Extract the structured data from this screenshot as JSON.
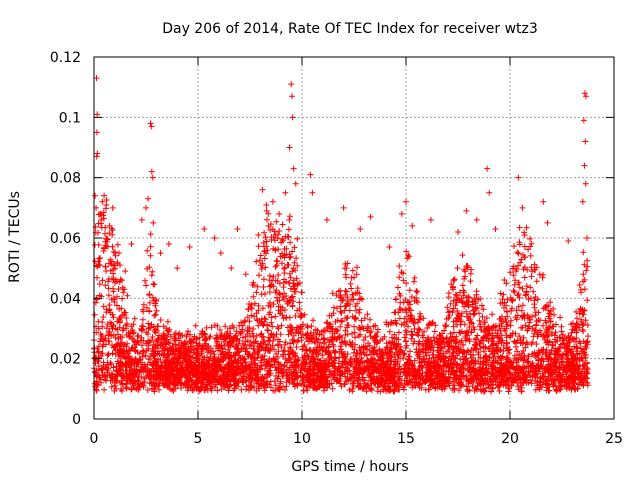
{
  "chart_data": {
    "type": "scatter",
    "title": "Day 206 of 2014, Rate Of TEC Index for receiver wtz3",
    "xlabel": "GPS time / hours",
    "ylabel": "ROTI / TECUs",
    "xlim": [
      0,
      25
    ],
    "ylim": [
      0,
      0.12
    ],
    "x_ticks": [
      0,
      5,
      10,
      15,
      20,
      25
    ],
    "x_tick_labels": [
      "0",
      "5",
      "10",
      "15",
      "20",
      "25"
    ],
    "y_ticks": [
      0,
      0.02,
      0.04,
      0.06,
      0.08,
      0.1,
      0.12
    ],
    "y_tick_labels": [
      "0",
      "0.02",
      "0.04",
      "0.06",
      "0.08",
      "0.1",
      "0.12"
    ],
    "grid": true,
    "marker": "plus",
    "series": [
      {
        "name": "ROTI",
        "color": "#ff0000",
        "note": "dense scatter from 0 to 23.7 h, mostly 0.005-0.04 TECU/s; representative outliers listed",
        "points": [
          [
            0.12,
            0.113
          ],
          [
            0.15,
            0.101
          ],
          [
            0.14,
            0.095
          ],
          [
            0.16,
            0.088
          ],
          [
            0.13,
            0.087
          ],
          [
            0.05,
            0.074
          ],
          [
            0.1,
            0.07
          ],
          [
            0.35,
            0.066
          ],
          [
            0.4,
            0.072
          ],
          [
            0.75,
            0.064
          ],
          [
            0.9,
            0.07
          ],
          [
            1.2,
            0.055
          ],
          [
            1.5,
            0.049
          ],
          [
            1.8,
            0.058
          ],
          [
            2.3,
            0.066
          ],
          [
            2.5,
            0.07
          ],
          [
            2.6,
            0.073
          ],
          [
            2.72,
            0.098
          ],
          [
            2.77,
            0.097
          ],
          [
            2.78,
            0.082
          ],
          [
            2.83,
            0.08
          ],
          [
            2.85,
            0.065
          ],
          [
            3.2,
            0.055
          ],
          [
            3.6,
            0.058
          ],
          [
            4.0,
            0.05
          ],
          [
            4.6,
            0.057
          ],
          [
            5.3,
            0.063
          ],
          [
            5.8,
            0.06
          ],
          [
            6.1,
            0.055
          ],
          [
            6.6,
            0.05
          ],
          [
            6.9,
            0.063
          ],
          [
            7.3,
            0.048
          ],
          [
            7.9,
            0.061
          ],
          [
            8.1,
            0.076
          ],
          [
            8.3,
            0.069
          ],
          [
            8.6,
            0.072
          ],
          [
            8.9,
            0.068
          ],
          [
            9.2,
            0.075
          ],
          [
            9.4,
            0.09
          ],
          [
            9.48,
            0.111
          ],
          [
            9.52,
            0.107
          ],
          [
            9.55,
            0.1
          ],
          [
            9.6,
            0.083
          ],
          [
            9.7,
            0.078
          ],
          [
            10.4,
            0.081
          ],
          [
            10.5,
            0.075
          ],
          [
            11.2,
            0.066
          ],
          [
            12.0,
            0.07
          ],
          [
            12.8,
            0.063
          ],
          [
            13.3,
            0.067
          ],
          [
            14.2,
            0.057
          ],
          [
            14.8,
            0.068
          ],
          [
            15.0,
            0.072
          ],
          [
            15.3,
            0.064
          ],
          [
            16.2,
            0.066
          ],
          [
            17.5,
            0.062
          ],
          [
            17.9,
            0.069
          ],
          [
            18.4,
            0.066
          ],
          [
            18.9,
            0.083
          ],
          [
            19.0,
            0.075
          ],
          [
            19.3,
            0.063
          ],
          [
            20.4,
            0.08
          ],
          [
            20.6,
            0.07
          ],
          [
            21.6,
            0.072
          ],
          [
            21.8,
            0.065
          ],
          [
            22.8,
            0.059
          ],
          [
            23.5,
            0.072
          ],
          [
            23.55,
            0.099
          ],
          [
            23.6,
            0.108
          ],
          [
            23.65,
            0.107
          ],
          [
            23.62,
            0.092
          ],
          [
            23.58,
            0.084
          ],
          [
            23.64,
            0.078
          ],
          [
            23.7,
            0.06
          ]
        ]
      }
    ]
  }
}
